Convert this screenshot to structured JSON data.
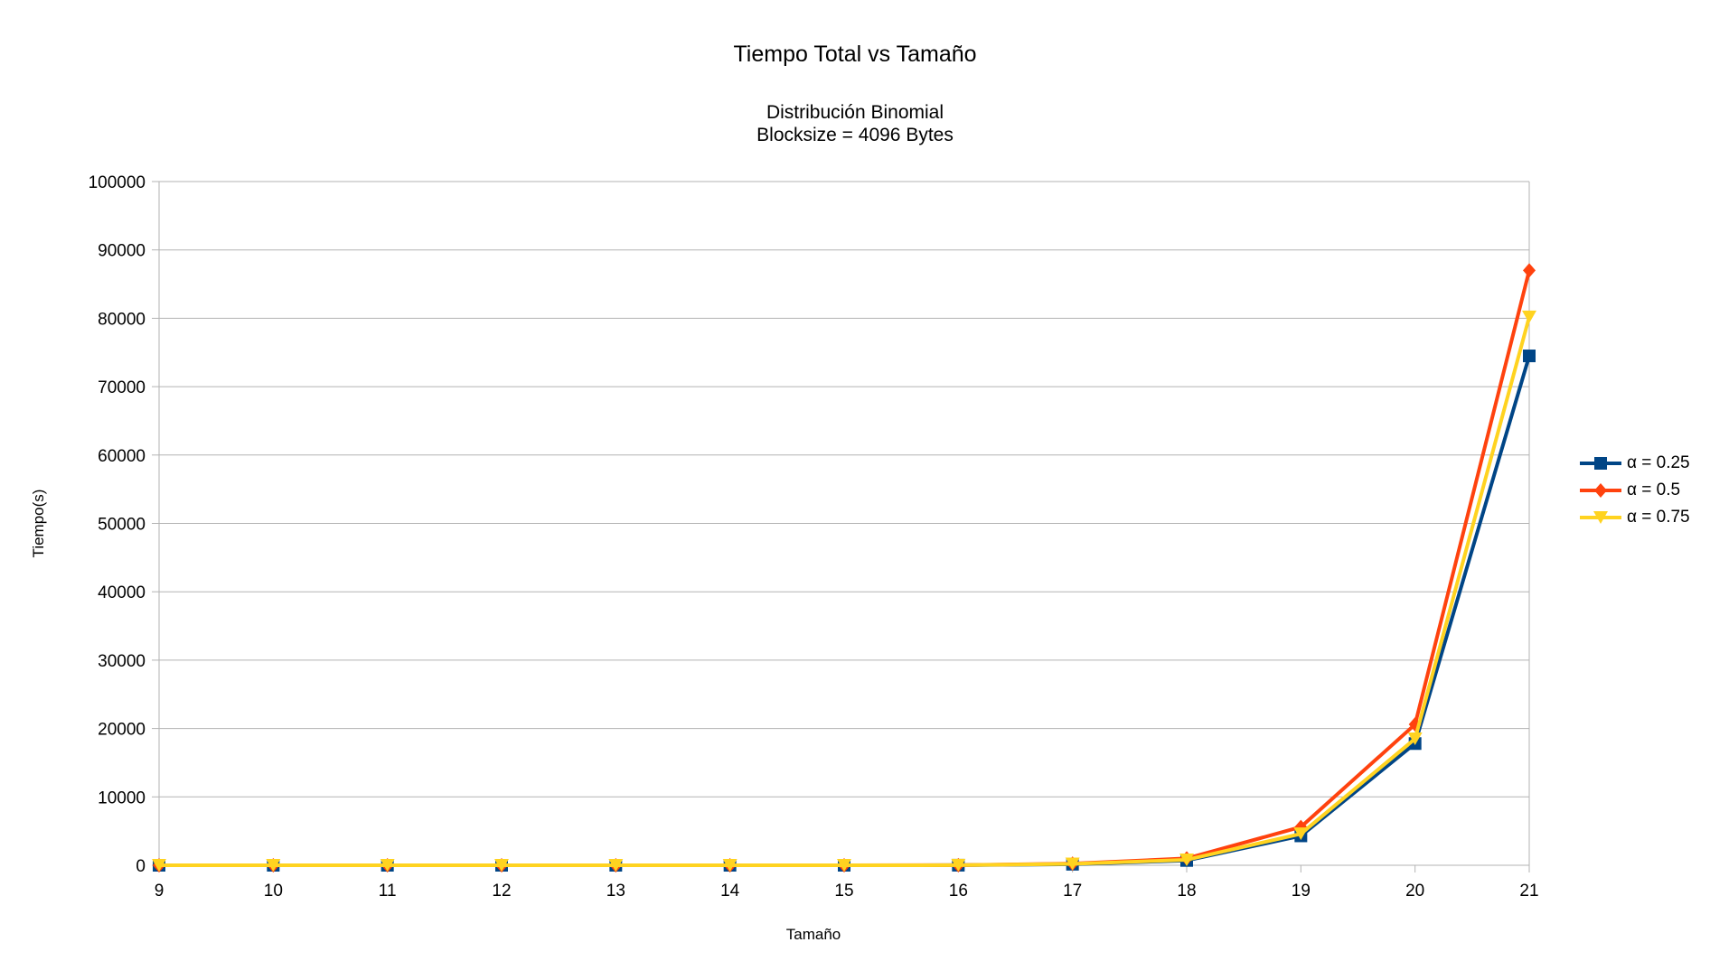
{
  "chart_data": {
    "type": "line",
    "title": "Tiempo Total vs Tamaño",
    "subtitle": [
      "Distribución Binomial",
      "Blocksize = 4096 Bytes"
    ],
    "xlabel": "Tamaño",
    "ylabel": "Tiempo(s)",
    "categories": [
      "9",
      "10",
      "11",
      "12",
      "13",
      "14",
      "15",
      "16",
      "17",
      "18",
      "19",
      "20",
      "21"
    ],
    "ylim": [
      0,
      100000
    ],
    "yticks": [
      "0",
      "10000",
      "20000",
      "30000",
      "40000",
      "50000",
      "60000",
      "70000",
      "80000",
      "90000",
      "100000"
    ],
    "grid": true,
    "legend_position": "right",
    "series": [
      {
        "name": "α = 0.25",
        "color": "#004586",
        "marker": "square",
        "values": [
          0,
          0,
          0,
          0,
          0,
          0,
          0,
          10,
          150,
          700,
          4300,
          17800,
          74500
        ]
      },
      {
        "name": "α = 0.5",
        "color": "#ff420e",
        "marker": "diamond",
        "values": [
          0,
          0,
          0,
          0,
          0,
          0,
          0,
          15,
          250,
          1000,
          5600,
          20600,
          87000
        ]
      },
      {
        "name": "α = 0.75",
        "color": "#ffd320",
        "marker": "triangle-down",
        "values": [
          0,
          0,
          0,
          0,
          0,
          0,
          0,
          12,
          200,
          800,
          4600,
          18500,
          80200
        ]
      }
    ]
  }
}
